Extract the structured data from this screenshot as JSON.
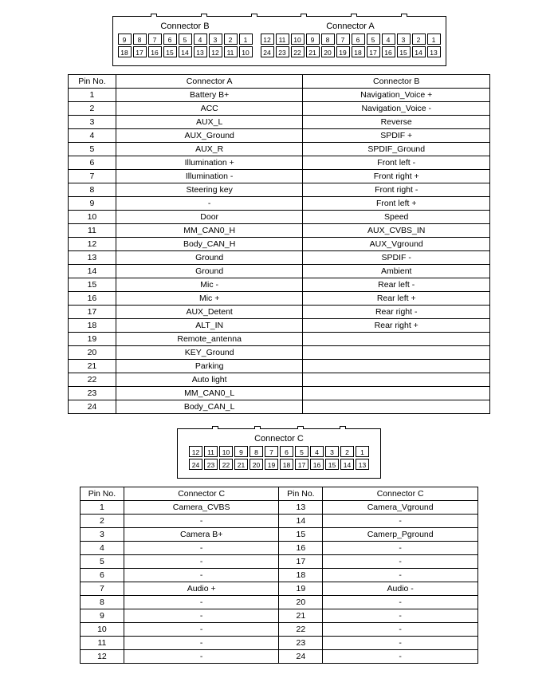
{
  "connectorAB": {
    "label_b": "Connector B",
    "label_a": "Connector A",
    "b_row1": [
      "9",
      "8",
      "7",
      "6",
      "5",
      "4",
      "3",
      "2",
      "1"
    ],
    "b_row2": [
      "18",
      "17",
      "16",
      "15",
      "14",
      "13",
      "12",
      "11",
      "10"
    ],
    "a_row1": [
      "12",
      "11",
      "10",
      "9",
      "8",
      "7",
      "6",
      "5",
      "4",
      "3",
      "2",
      "1"
    ],
    "a_row2": [
      "24",
      "23",
      "22",
      "21",
      "20",
      "19",
      "18",
      "17",
      "16",
      "15",
      "14",
      "13"
    ]
  },
  "tableAB": {
    "headers": [
      "Pin No.",
      "Connector A",
      "Connector B"
    ],
    "rows": [
      [
        "1",
        "Battery B+",
        "Navigation_Voice +"
      ],
      [
        "2",
        "ACC",
        "Navigation_Voice -"
      ],
      [
        "3",
        "AUX_L",
        "Reverse"
      ],
      [
        "4",
        "AUX_Ground",
        "SPDIF +"
      ],
      [
        "5",
        "AUX_R",
        "SPDIF_Ground"
      ],
      [
        "6",
        "Illumination +",
        "Front left -"
      ],
      [
        "7",
        "Illumination -",
        "Front right +"
      ],
      [
        "8",
        "Steering key",
        "Front right -"
      ],
      [
        "9",
        "-",
        "Front left +"
      ],
      [
        "10",
        "Door",
        "Speed"
      ],
      [
        "11",
        "MM_CAN0_H",
        "AUX_CVBS_IN"
      ],
      [
        "12",
        "Body_CAN_H",
        "AUX_Vground"
      ],
      [
        "13",
        "Ground",
        "SPDIF -"
      ],
      [
        "14",
        "Ground",
        "Ambient"
      ],
      [
        "15",
        "Mic -",
        "Rear left -"
      ],
      [
        "16",
        "Mic +",
        "Rear left +"
      ],
      [
        "17",
        "AUX_Detent",
        "Rear right -"
      ],
      [
        "18",
        "ALT_IN",
        "Rear right +"
      ],
      [
        "19",
        "Remote_antenna",
        ""
      ],
      [
        "20",
        "KEY_Ground",
        ""
      ],
      [
        "21",
        "Parking",
        ""
      ],
      [
        "22",
        "Auto light",
        ""
      ],
      [
        "23",
        "MM_CAN0_L",
        ""
      ],
      [
        "24",
        "Body_CAN_L",
        ""
      ]
    ]
  },
  "connectorC": {
    "label": "Connector C",
    "row1": [
      "12",
      "11",
      "10",
      "9",
      "8",
      "7",
      "6",
      "5",
      "4",
      "3",
      "2",
      "1"
    ],
    "row2": [
      "24",
      "23",
      "22",
      "21",
      "20",
      "19",
      "18",
      "17",
      "16",
      "15",
      "14",
      "13"
    ]
  },
  "tableC": {
    "headers": [
      "Pin No.",
      "Connector C",
      "Pin No.",
      "Connector C"
    ],
    "rows": [
      [
        "1",
        "Camera_CVBS",
        "13",
        "Camera_Vground"
      ],
      [
        "2",
        "-",
        "14",
        "-"
      ],
      [
        "3",
        "Camera B+",
        "15",
        "Camerp_Pground"
      ],
      [
        "4",
        "-",
        "16",
        "-"
      ],
      [
        "5",
        "-",
        "17",
        "-"
      ],
      [
        "6",
        "-",
        "18",
        "-"
      ],
      [
        "7",
        "Audio +",
        "19",
        "Audio -"
      ],
      [
        "8",
        "-",
        "20",
        "-"
      ],
      [
        "9",
        "-",
        "21",
        "-"
      ],
      [
        "10",
        "-",
        "22",
        "-"
      ],
      [
        "11",
        "-",
        "23",
        "-"
      ],
      [
        "12",
        "-",
        "24",
        "-"
      ]
    ]
  }
}
